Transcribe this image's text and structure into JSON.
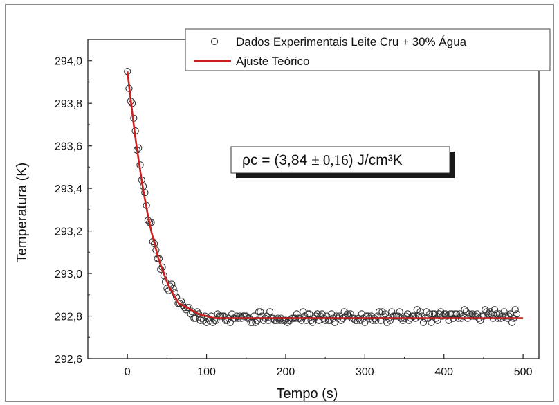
{
  "chart_data": {
    "type": "scatter",
    "xlabel": "Tempo (s)",
    "ylabel": "Temperatura (K)",
    "xlim": [
      -50,
      520
    ],
    "ylim": [
      292.6,
      294.1
    ],
    "x_ticks": [
      0,
      100,
      200,
      300,
      400,
      500
    ],
    "x_tick_labels": [
      "0",
      "100",
      "200",
      "300",
      "400",
      "500"
    ],
    "y_ticks": [
      292.6,
      292.8,
      293.0,
      293.2,
      293.4,
      293.6,
      293.8,
      294.0
    ],
    "y_tick_labels": [
      "292,6",
      "292,8",
      "293,0",
      "293,2",
      "293,4",
      "293,6",
      "293,8",
      "294,0"
    ],
    "grid": false,
    "legend_position": "top-right",
    "series": [
      {
        "name": "Dados Experimentais Leite Cru + 30% Água",
        "kind": "scatter",
        "marker": "open-circle",
        "color": "#333333",
        "x_start": 0,
        "x_step": 2,
        "y": [
          293.95,
          293.87,
          293.81,
          293.8,
          293.73,
          293.67,
          293.58,
          293.59,
          293.51,
          293.44,
          293.41,
          293.38,
          293.32,
          293.25,
          293.24,
          293.24,
          293.15,
          293.14,
          293.11,
          293.07,
          293.07,
          293.02,
          293.03,
          292.99,
          292.96,
          292.93,
          292.92,
          292.94,
          292.95,
          292.93,
          292.91,
          292.89,
          292.86,
          292.86,
          292.87,
          292.85,
          292.84,
          292.83,
          292.84,
          292.84,
          292.81,
          292.82,
          292.79,
          292.79,
          292.82,
          292.81,
          292.78,
          292.79,
          292.78,
          292.8,
          292.77,
          292.79,
          292.78,
          292.8,
          292.77,
          292.78,
          292.78,
          292.81,
          292.8,
          292.8,
          292.8,
          292.8,
          292.78,
          292.78,
          292.79,
          292.77,
          292.81,
          292.79,
          292.79,
          292.8,
          292.79,
          292.8,
          292.79,
          292.8,
          292.8,
          292.8,
          292.79,
          292.79,
          292.77,
          292.77,
          292.8,
          292.77,
          292.78,
          292.82,
          292.82,
          292.8,
          292.78,
          292.79,
          292.8,
          292.78,
          292.82,
          292.79,
          292.79,
          292.78,
          292.78,
          292.79,
          292.78,
          292.79,
          292.78,
          292.78,
          292.78,
          292.77,
          292.78,
          292.78,
          292.79,
          292.79,
          292.79,
          292.81,
          292.79,
          292.79,
          292.78,
          292.82,
          292.8,
          292.78,
          292.81,
          292.81,
          292.78,
          292.77,
          292.79,
          292.8,
          292.81,
          292.78,
          292.8,
          292.81,
          292.79,
          292.78,
          292.8,
          292.78,
          292.78,
          292.81,
          292.79,
          292.77,
          292.8,
          292.79,
          292.8,
          292.78,
          292.79,
          292.82,
          292.8,
          292.81,
          292.8,
          292.81,
          292.79,
          292.79,
          292.78,
          292.78,
          292.79,
          292.78,
          292.81,
          292.79,
          292.77,
          292.8,
          292.8,
          292.79,
          292.8,
          292.78,
          292.79,
          292.78,
          292.8,
          292.82,
          292.78,
          292.82,
          292.8,
          292.81,
          292.77,
          292.79,
          292.78,
          292.82,
          292.8,
          292.8,
          292.8,
          292.8,
          292.82,
          292.79,
          292.78,
          292.79,
          292.8,
          292.81,
          292.78,
          292.79,
          292.8,
          292.8,
          292.79,
          292.83,
          292.8,
          292.82,
          292.8,
          292.77,
          292.79,
          292.82,
          292.79,
          292.81,
          292.77,
          292.81,
          292.81,
          292.79,
          292.78,
          292.81,
          292.82,
          292.8,
          292.81,
          292.81,
          292.8,
          292.78,
          292.81,
          292.81,
          292.79,
          292.81,
          292.81,
          292.79,
          292.81,
          292.79,
          292.8,
          292.83,
          292.82,
          292.79,
          292.81,
          292.8,
          292.81,
          292.8,
          292.8,
          292.81,
          292.79,
          292.78,
          292.8,
          292.8,
          292.83,
          292.82,
          292.81,
          292.82,
          292.81,
          292.79,
          292.83,
          292.81,
          292.79,
          292.81,
          292.79,
          292.8,
          292.82,
          292.8,
          292.79,
          292.8,
          292.81,
          292.77,
          292.79,
          292.83,
          292.81
        ]
      },
      {
        "name": "Ajuste Teórico",
        "kind": "line",
        "color": "#cc1f1f",
        "x": [
          0,
          5,
          10,
          15,
          20,
          25,
          30,
          35,
          40,
          45,
          50,
          55,
          60,
          65,
          70,
          75,
          80,
          90,
          100,
          110,
          120,
          130,
          140,
          160,
          180,
          200,
          250,
          300,
          350,
          400,
          450,
          500
        ],
        "y": [
          293.95,
          293.79,
          293.64,
          293.51,
          293.39,
          293.29,
          293.2,
          293.13,
          293.06,
          293.01,
          292.96,
          292.92,
          292.89,
          292.86,
          292.85,
          292.84,
          292.83,
          292.81,
          292.8,
          292.79,
          292.79,
          292.79,
          292.79,
          292.79,
          292.79,
          292.79,
          292.79,
          292.79,
          292.79,
          292.79,
          292.79,
          292.79
        ]
      }
    ],
    "annotation": {
      "text_prefix": "ρc = (3,84 ",
      "pm_text": "± 0,16",
      "text_suffix": ") J/cm³K"
    }
  }
}
